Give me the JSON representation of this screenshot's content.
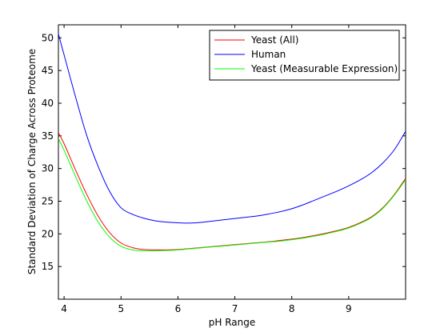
{
  "chart_data": {
    "type": "line",
    "title": "",
    "xlabel": "pH Range",
    "ylabel": "Standard Deviation of Charge Across Proteome",
    "xlim": [
      3.9,
      10.0
    ],
    "ylim": [
      10,
      52
    ],
    "xticks": [
      4,
      5,
      6,
      7,
      8,
      9
    ],
    "yticks": [
      15,
      20,
      25,
      30,
      35,
      40,
      45,
      50
    ],
    "grid": false,
    "legend_position": "top-right",
    "x": [
      3.9,
      4.0,
      4.2,
      4.4,
      4.6,
      4.8,
      5.0,
      5.2,
      5.4,
      5.6,
      5.8,
      6.0,
      6.2,
      6.4,
      6.6,
      6.8,
      7.0,
      7.2,
      7.4,
      7.6,
      7.8,
      8.0,
      8.2,
      8.4,
      8.6,
      8.8,
      9.0,
      9.2,
      9.4,
      9.6,
      9.8,
      10.0
    ],
    "series": [
      {
        "name": "Yeast (All)",
        "color": "#ff0000",
        "values": [
          35.5,
          33.8,
          29.8,
          26.0,
          22.7,
          20.2,
          18.6,
          17.9,
          17.6,
          17.55,
          17.55,
          17.6,
          17.75,
          17.9,
          18.05,
          18.2,
          18.35,
          18.5,
          18.65,
          18.8,
          19.0,
          19.2,
          19.45,
          19.75,
          20.1,
          20.5,
          21.0,
          21.7,
          22.6,
          24.0,
          26.0,
          28.5
        ]
      },
      {
        "name": "Human",
        "color": "#0000ff",
        "values": [
          50.6,
          47.4,
          41.0,
          35.0,
          30.3,
          26.5,
          24.0,
          23.0,
          22.4,
          22.0,
          21.8,
          21.7,
          21.65,
          21.75,
          21.95,
          22.15,
          22.35,
          22.55,
          22.75,
          23.05,
          23.4,
          23.85,
          24.45,
          25.15,
          25.85,
          26.55,
          27.35,
          28.25,
          29.35,
          30.85,
          32.85,
          35.7
        ]
      },
      {
        "name": "Yeast (Measurable Expression)",
        "color": "#00ff00",
        "values": [
          34.6,
          32.8,
          28.8,
          25.0,
          21.8,
          19.5,
          18.1,
          17.55,
          17.4,
          17.4,
          17.45,
          17.55,
          17.7,
          17.85,
          18.0,
          18.15,
          18.3,
          18.45,
          18.6,
          18.75,
          18.9,
          19.1,
          19.35,
          19.65,
          20.0,
          20.4,
          20.9,
          21.6,
          22.5,
          23.9,
          25.9,
          28.3
        ]
      }
    ]
  }
}
